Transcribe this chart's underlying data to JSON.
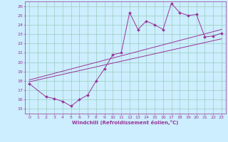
{
  "xlabel": "Windchill (Refroidissement éolien,°C)",
  "bg_color": "#cceeff",
  "grid_color": "#99ccbb",
  "line_color": "#993399",
  "xlim": [
    -0.5,
    23.5
  ],
  "ylim": [
    14.5,
    26.5
  ],
  "xticks": [
    0,
    1,
    2,
    3,
    4,
    5,
    6,
    7,
    8,
    9,
    10,
    11,
    12,
    13,
    14,
    15,
    16,
    17,
    18,
    19,
    20,
    21,
    22,
    23
  ],
  "yticks": [
    15,
    16,
    17,
    18,
    19,
    20,
    21,
    22,
    23,
    24,
    25,
    26
  ],
  "line1_x": [
    0,
    2,
    3,
    4,
    5,
    6,
    7,
    8,
    9,
    10,
    11,
    12,
    13,
    14,
    15,
    16,
    17,
    18,
    19,
    20,
    21,
    22,
    23
  ],
  "line1_y": [
    17.7,
    16.3,
    16.1,
    15.8,
    15.3,
    16.0,
    16.5,
    18.0,
    19.3,
    20.8,
    21.0,
    25.3,
    23.5,
    24.4,
    24.0,
    23.5,
    26.3,
    25.3,
    25.0,
    25.1,
    22.7,
    22.8,
    23.1
  ],
  "line2_x": [
    0,
    23
  ],
  "line2_y": [
    17.9,
    22.5
  ],
  "line3_x": [
    0,
    23
  ],
  "line3_y": [
    18.1,
    23.5
  ]
}
